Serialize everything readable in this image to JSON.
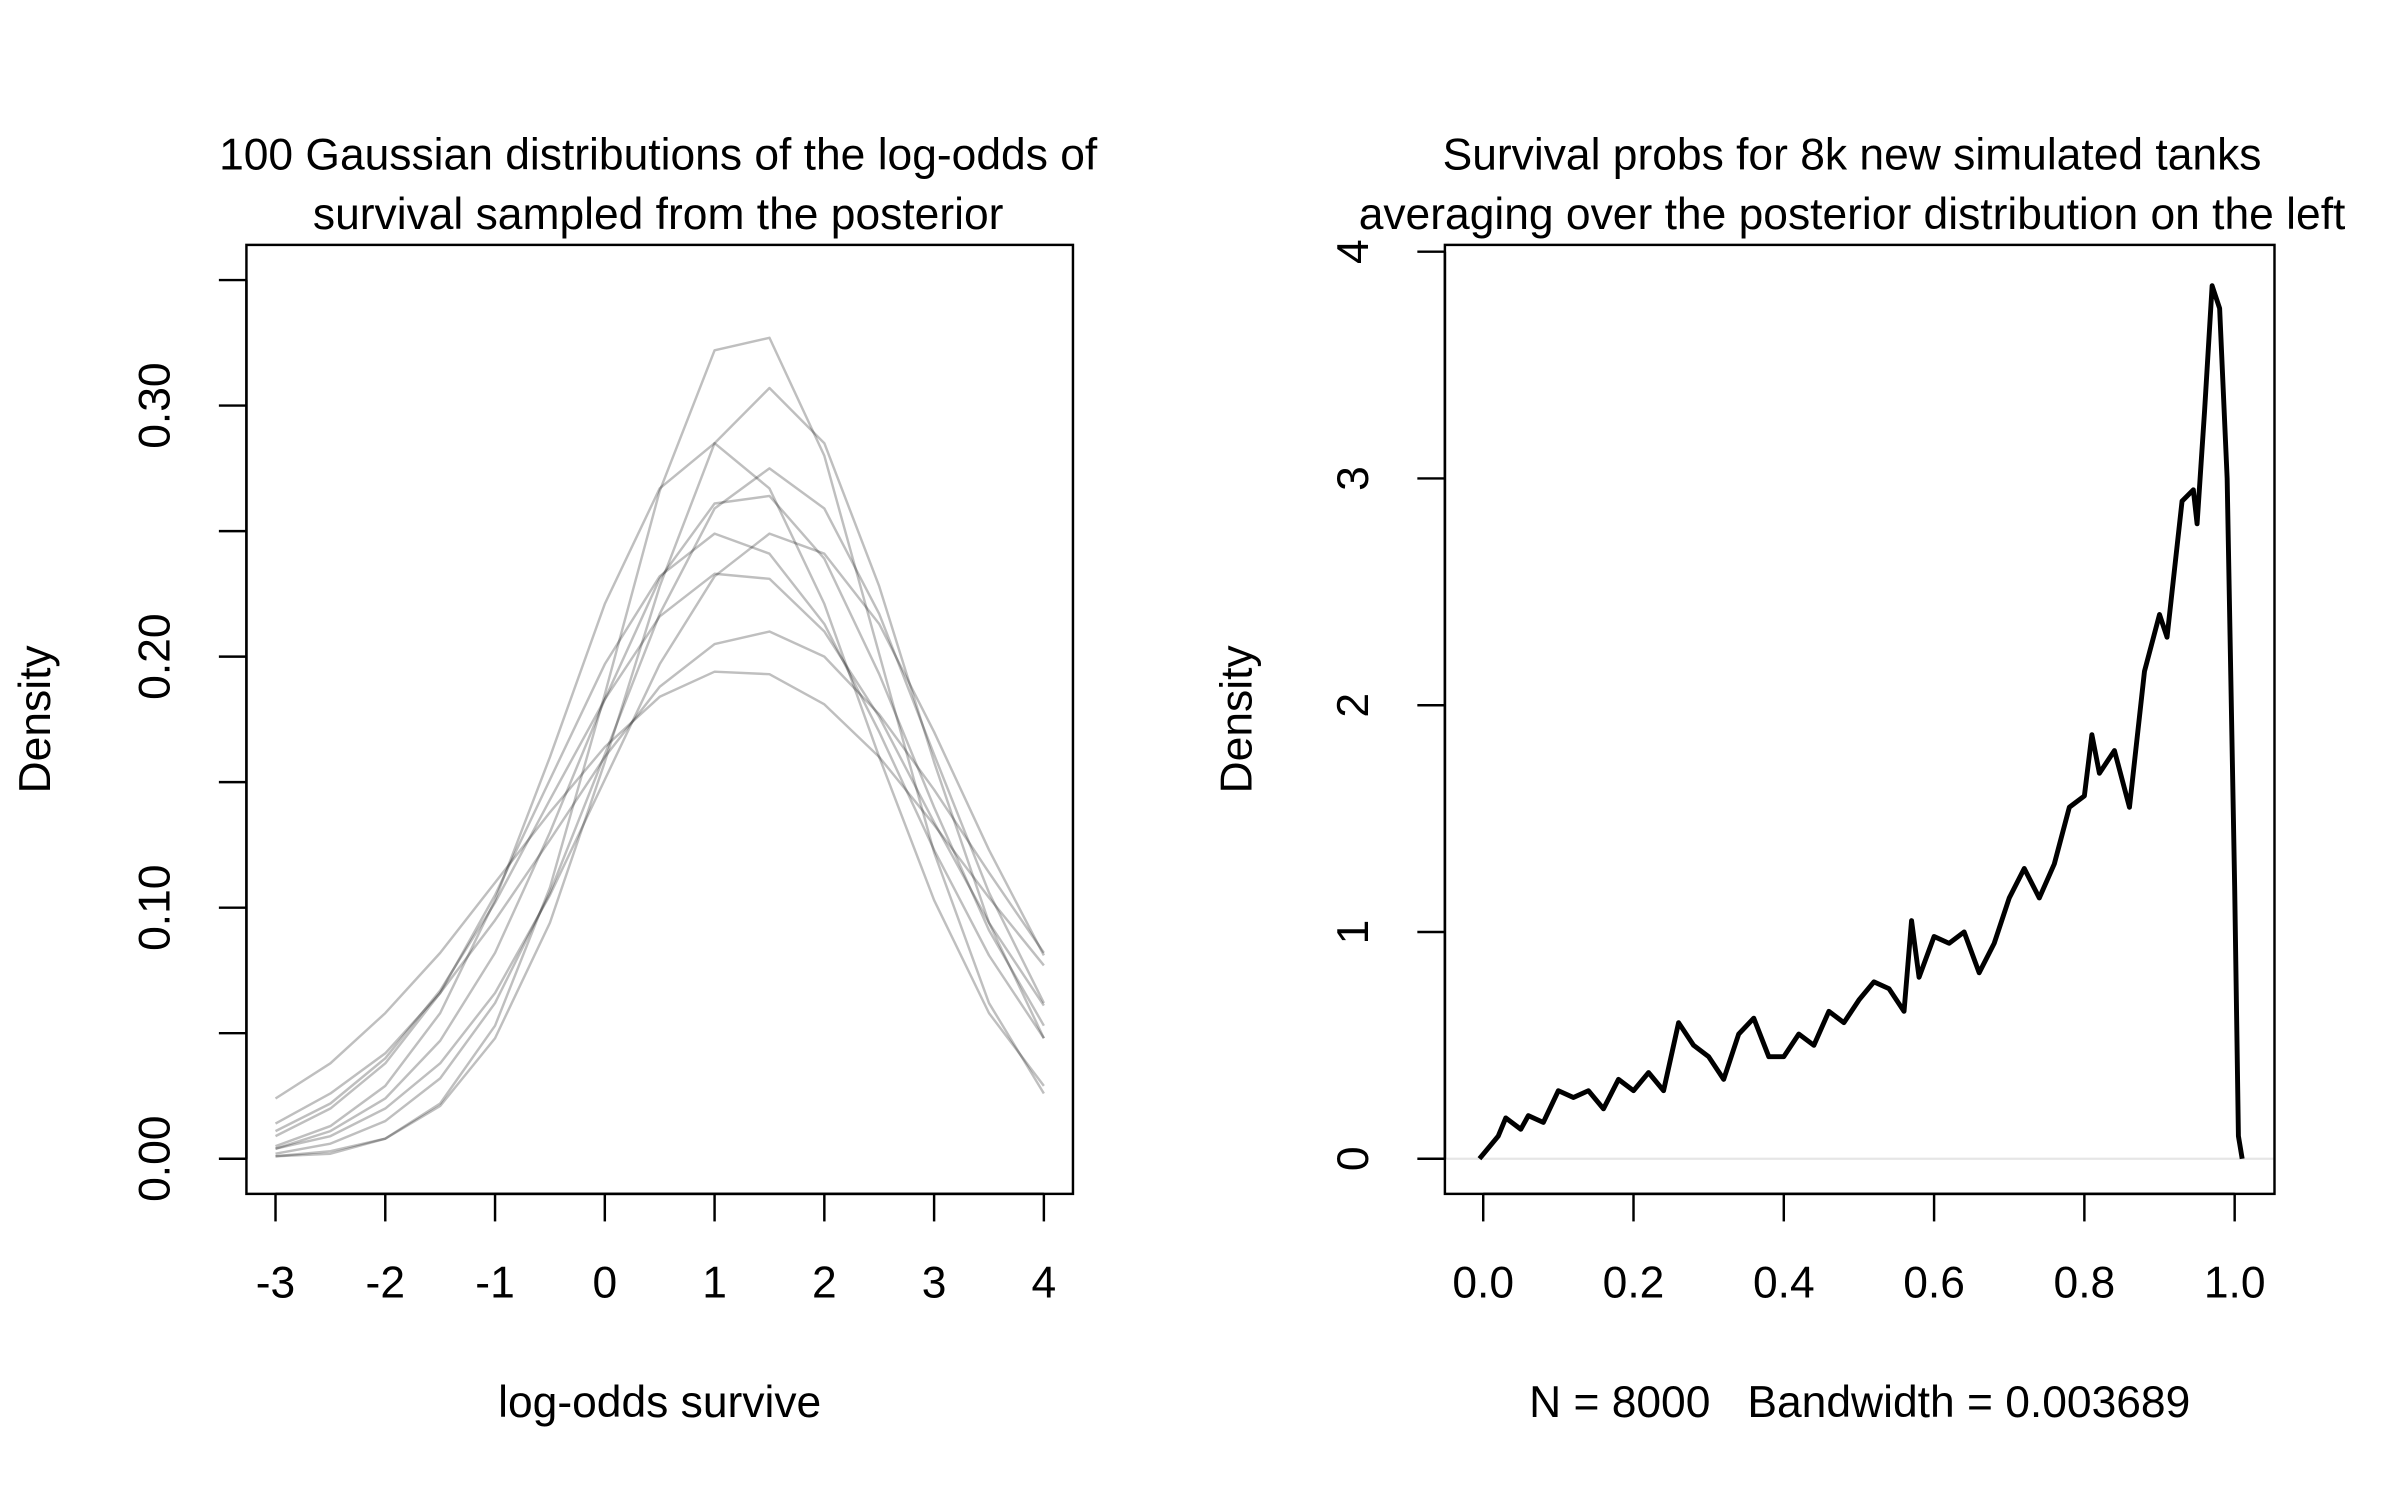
{
  "chart_data": [
    {
      "type": "line",
      "title": [
        "100 Gaussian distributions of the log-odds of",
        "survival sampled from the posterior"
      ],
      "xlabel": "log-odds survive",
      "ylabel": "Density",
      "color": "rgba(0,0,0,0.25)",
      "x": [
        -3,
        -2.5,
        -2,
        -1.5,
        -1,
        -0.5,
        0,
        0.5,
        1,
        1.5,
        2,
        2.5,
        3,
        3.5,
        4
      ],
      "series": [
        {
          "values": [
            0.001,
            0.002,
            0.008,
            0.022,
            0.053,
            0.108,
            0.185,
            0.266,
            0.322,
            0.327,
            0.28,
            0.201,
            0.122,
            0.062,
            0.026
          ]
        },
        {
          "values": [
            0.001,
            0.003,
            0.008,
            0.021,
            0.048,
            0.094,
            0.158,
            0.228,
            0.285,
            0.307,
            0.285,
            0.228,
            0.158,
            0.094,
            0.048
          ]
        },
        {
          "values": [
            0.005,
            0.013,
            0.029,
            0.058,
            0.103,
            0.16,
            0.221,
            0.267,
            0.285,
            0.267,
            0.221,
            0.16,
            0.103,
            0.058,
            0.029
          ]
        },
        {
          "values": [
            0.004,
            0.011,
            0.024,
            0.047,
            0.082,
            0.13,
            0.183,
            0.231,
            0.261,
            0.264,
            0.239,
            0.193,
            0.14,
            0.091,
            0.053
          ]
        },
        {
          "values": [
            0.004,
            0.009,
            0.02,
            0.038,
            0.066,
            0.105,
            0.151,
            0.197,
            0.232,
            0.249,
            0.241,
            0.213,
            0.17,
            0.123,
            0.081
          ]
        },
        {
          "values": [
            0.011,
            0.022,
            0.04,
            0.067,
            0.102,
            0.143,
            0.183,
            0.216,
            0.233,
            0.231,
            0.21,
            0.176,
            0.134,
            0.094,
            0.061
          ]
        },
        {
          "values": [
            0.014,
            0.026,
            0.042,
            0.066,
            0.095,
            0.127,
            0.16,
            0.188,
            0.205,
            0.21,
            0.2,
            0.177,
            0.147,
            0.114,
            0.082
          ]
        },
        {
          "values": [
            0.009,
            0.02,
            0.038,
            0.066,
            0.105,
            0.151,
            0.197,
            0.232,
            0.249,
            0.241,
            0.213,
            0.17,
            0.123,
            0.081,
            0.048
          ]
        },
        {
          "values": [
            0.002,
            0.006,
            0.015,
            0.032,
            0.062,
            0.106,
            0.161,
            0.217,
            0.259,
            0.275,
            0.259,
            0.217,
            0.161,
            0.106,
            0.062
          ]
        },
        {
          "values": [
            0.024,
            0.038,
            0.058,
            0.082,
            0.11,
            0.138,
            0.164,
            0.184,
            0.194,
            0.193,
            0.181,
            0.16,
            0.133,
            0.104,
            0.077
          ]
        }
      ],
      "xlim": [
        -3.265,
        4.265
      ],
      "ylim": [
        -0.014,
        0.364
      ],
      "xticks": [
        -3,
        -2,
        -1,
        0,
        1,
        2,
        3,
        4
      ],
      "yticks": [
        {
          "value": 0,
          "label": "0.00"
        },
        {
          "value": 0.1,
          "label": "0.10"
        },
        {
          "value": 0.2,
          "label": "0.20"
        },
        {
          "value": 0.3,
          "label": "0.30"
        }
      ],
      "yticks_minor": [
        0.05,
        0.15,
        0.25,
        0.35
      ]
    },
    {
      "type": "line",
      "title": [
        "Survival probs for 8k new simulated tanks",
        "averaging over the posterior distribution on the left"
      ],
      "xlabel": "N = 8000   Bandwidth = 0.003689",
      "ylabel": "Density",
      "x": [
        -0.005,
        0,
        0.02,
        0.03,
        0.05,
        0.06,
        0.08,
        0.1,
        0.12,
        0.14,
        0.16,
        0.18,
        0.2,
        0.22,
        0.24,
        0.26,
        0.28,
        0.3,
        0.32,
        0.34,
        0.36,
        0.38,
        0.4,
        0.42,
        0.44,
        0.46,
        0.48,
        0.5,
        0.52,
        0.54,
        0.56,
        0.57,
        0.58,
        0.6,
        0.62,
        0.64,
        0.66,
        0.68,
        0.7,
        0.72,
        0.74,
        0.76,
        0.78,
        0.8,
        0.81,
        0.82,
        0.84,
        0.86,
        0.88,
        0.9,
        0.91,
        0.92,
        0.93,
        0.945,
        0.95,
        0.96,
        0.97,
        0.98,
        0.99,
        1.0,
        1.005,
        1.01
      ],
      "series": [
        {
          "color": "#000000",
          "values": [
            0,
            0.02,
            0.1,
            0.18,
            0.13,
            0.19,
            0.16,
            0.3,
            0.27,
            0.3,
            0.22,
            0.35,
            0.3,
            0.38,
            0.3,
            0.6,
            0.5,
            0.45,
            0.35,
            0.55,
            0.62,
            0.45,
            0.45,
            0.55,
            0.5,
            0.65,
            0.6,
            0.7,
            0.78,
            0.75,
            0.65,
            1.05,
            0.8,
            0.98,
            0.95,
            1.0,
            0.82,
            0.95,
            1.15,
            1.28,
            1.15,
            1.3,
            1.55,
            1.6,
            1.87,
            1.7,
            1.8,
            1.55,
            2.15,
            2.4,
            2.3,
            2.6,
            2.9,
            2.95,
            2.8,
            3.3,
            3.85,
            3.75,
            3.0,
            1.2,
            0.1,
            0
          ]
        }
      ],
      "xlim": [
        -0.051,
        1.053
      ],
      "ylim": [
        -0.155,
        4.03
      ],
      "xticks": [
        {
          "value": 0,
          "label": "0.0"
        },
        {
          "value": 0.2,
          "label": "0.2"
        },
        {
          "value": 0.4,
          "label": "0.4"
        },
        {
          "value": 0.6,
          "label": "0.6"
        },
        {
          "value": 0.8,
          "label": "0.8"
        },
        {
          "value": 1,
          "label": "1.0"
        }
      ],
      "yticks": [
        0,
        1,
        2,
        3,
        4
      ]
    }
  ]
}
